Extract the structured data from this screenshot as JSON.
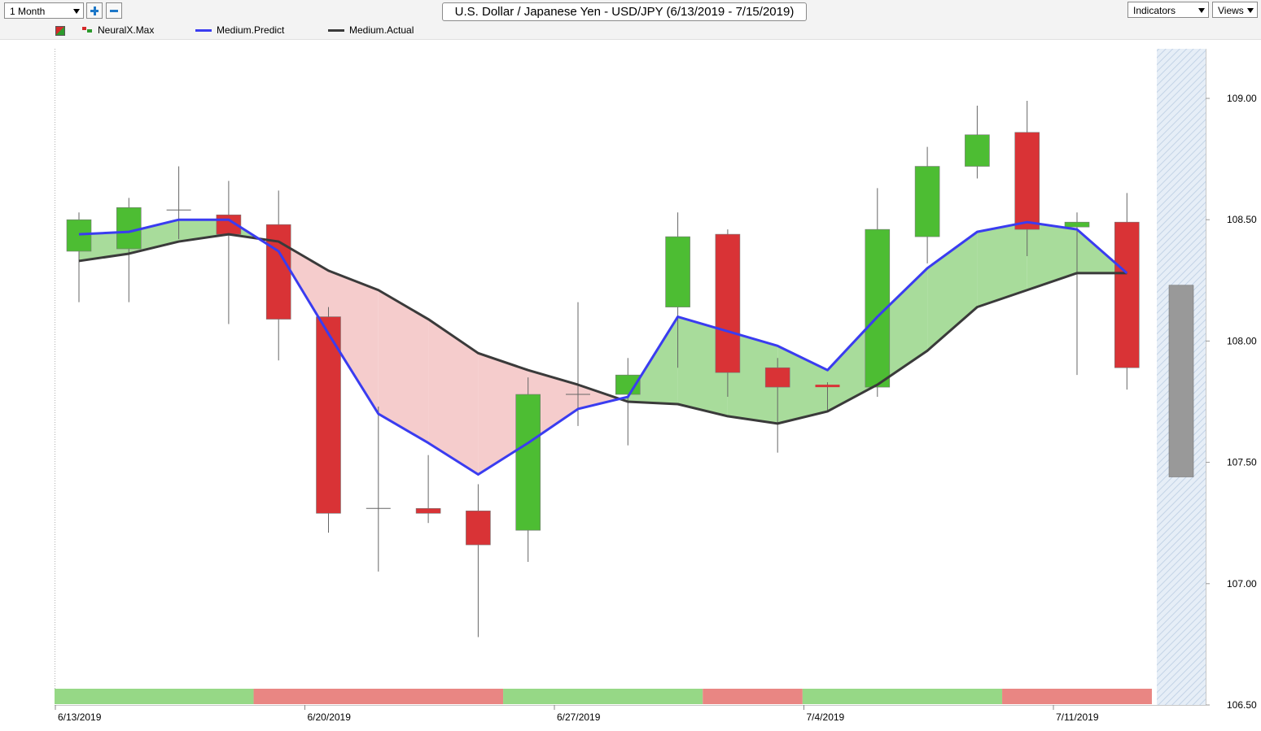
{
  "toolbar": {
    "period_select": "1 Month",
    "indicators_label": "Indicators",
    "views_label": "Views",
    "chart_title": "U.S. Dollar / Japanese Yen - USD/JPY (6/13/2019 - 7/15/2019)"
  },
  "legend": {
    "neuralx": "NeuralX.Max",
    "predict": "Medium.Predict",
    "actual": "Medium.Actual"
  },
  "colors": {
    "up": "#4dbd33",
    "down": "#d93336",
    "predict": "#3a3cf0",
    "actual": "#3a3a3a",
    "fill_up": "#a8dc9b",
    "fill_down": "#f5cccc",
    "band_up": "#96d886",
    "band_down": "#e98683",
    "forecast": "#999999"
  },
  "chart_data": {
    "type": "candlestick",
    "title": "U.S. Dollar / Japanese Yen - USD/JPY (6/13/2019 - 7/15/2019)",
    "ylim": [
      106.5,
      109.2
    ],
    "yticks": [
      "109.00",
      "108.50",
      "108.00",
      "107.50",
      "107.00",
      "106.50"
    ],
    "xticks": [
      {
        "label": "6/13/2019",
        "index": 0
      },
      {
        "label": "6/20/2019",
        "index": 5
      },
      {
        "label": "6/27/2019",
        "index": 10
      },
      {
        "label": "7/4/2019",
        "index": 15
      },
      {
        "label": "7/11/2019",
        "index": 20
      }
    ],
    "candles": [
      {
        "open": 108.37,
        "high": 108.53,
        "low": 108.16,
        "close": 108.5
      },
      {
        "open": 108.38,
        "high": 108.59,
        "low": 108.16,
        "close": 108.55
      },
      {
        "open": 108.54,
        "high": 108.72,
        "low": 108.42,
        "close": 108.54
      },
      {
        "open": 108.52,
        "high": 108.66,
        "low": 108.07,
        "close": 108.44
      },
      {
        "open": 108.48,
        "high": 108.62,
        "low": 107.92,
        "close": 108.09
      },
      {
        "open": 108.1,
        "high": 108.14,
        "low": 107.21,
        "close": 107.29
      },
      {
        "open": 107.31,
        "high": 107.73,
        "low": 107.05,
        "close": 107.31
      },
      {
        "open": 107.31,
        "high": 107.53,
        "low": 107.25,
        "close": 107.29
      },
      {
        "open": 107.3,
        "high": 107.41,
        "low": 106.78,
        "close": 107.16
      },
      {
        "open": 107.22,
        "high": 107.85,
        "low": 107.09,
        "close": 107.78
      },
      {
        "open": 107.78,
        "high": 108.16,
        "low": 107.65,
        "close": 107.78
      },
      {
        "open": 107.78,
        "high": 107.93,
        "low": 107.57,
        "close": 107.86
      },
      {
        "open": 108.14,
        "high": 108.53,
        "low": 107.89,
        "close": 108.43
      },
      {
        "open": 108.44,
        "high": 108.46,
        "low": 107.77,
        "close": 107.87
      },
      {
        "open": 107.89,
        "high": 107.93,
        "low": 107.54,
        "close": 107.81
      },
      {
        "open": 107.82,
        "high": 107.83,
        "low": 107.71,
        "close": 107.81
      },
      {
        "open": 107.81,
        "high": 108.63,
        "low": 107.77,
        "close": 108.46
      },
      {
        "open": 108.43,
        "high": 108.8,
        "low": 108.32,
        "close": 108.72
      },
      {
        "open": 108.72,
        "high": 108.97,
        "low": 108.67,
        "close": 108.85
      },
      {
        "open": 108.86,
        "high": 108.99,
        "low": 108.35,
        "close": 108.46
      },
      {
        "open": 108.47,
        "high": 108.53,
        "low": 107.86,
        "close": 108.49
      },
      {
        "open": 108.49,
        "high": 108.61,
        "low": 107.8,
        "close": 107.89
      }
    ],
    "series": [
      {
        "name": "Medium.Predict",
        "values": [
          108.44,
          108.45,
          108.5,
          108.5,
          108.37,
          108.03,
          107.7,
          107.58,
          107.45,
          107.58,
          107.72,
          107.77,
          108.1,
          108.04,
          107.98,
          107.88,
          108.1,
          108.3,
          108.45,
          108.49,
          108.46,
          108.28
        ]
      },
      {
        "name": "Medium.Actual",
        "values": [
          108.33,
          108.36,
          108.41,
          108.44,
          108.41,
          108.29,
          108.21,
          108.09,
          107.95,
          107.88,
          107.82,
          107.75,
          107.74,
          107.69,
          107.66,
          107.71,
          107.82,
          107.96,
          108.14,
          108.21,
          108.28,
          108.28
        ]
      }
    ],
    "forecast_bar": {
      "high": 108.23,
      "low": 107.44
    },
    "signal_band": [
      {
        "start": 0,
        "end": 4,
        "signal": "up"
      },
      {
        "start": 4,
        "end": 9,
        "signal": "down"
      },
      {
        "start": 9,
        "end": 13,
        "signal": "up"
      },
      {
        "start": 13,
        "end": 15,
        "signal": "down"
      },
      {
        "start": 15,
        "end": 19,
        "signal": "up"
      },
      {
        "start": 19,
        "end": 22,
        "signal": "down"
      }
    ]
  }
}
